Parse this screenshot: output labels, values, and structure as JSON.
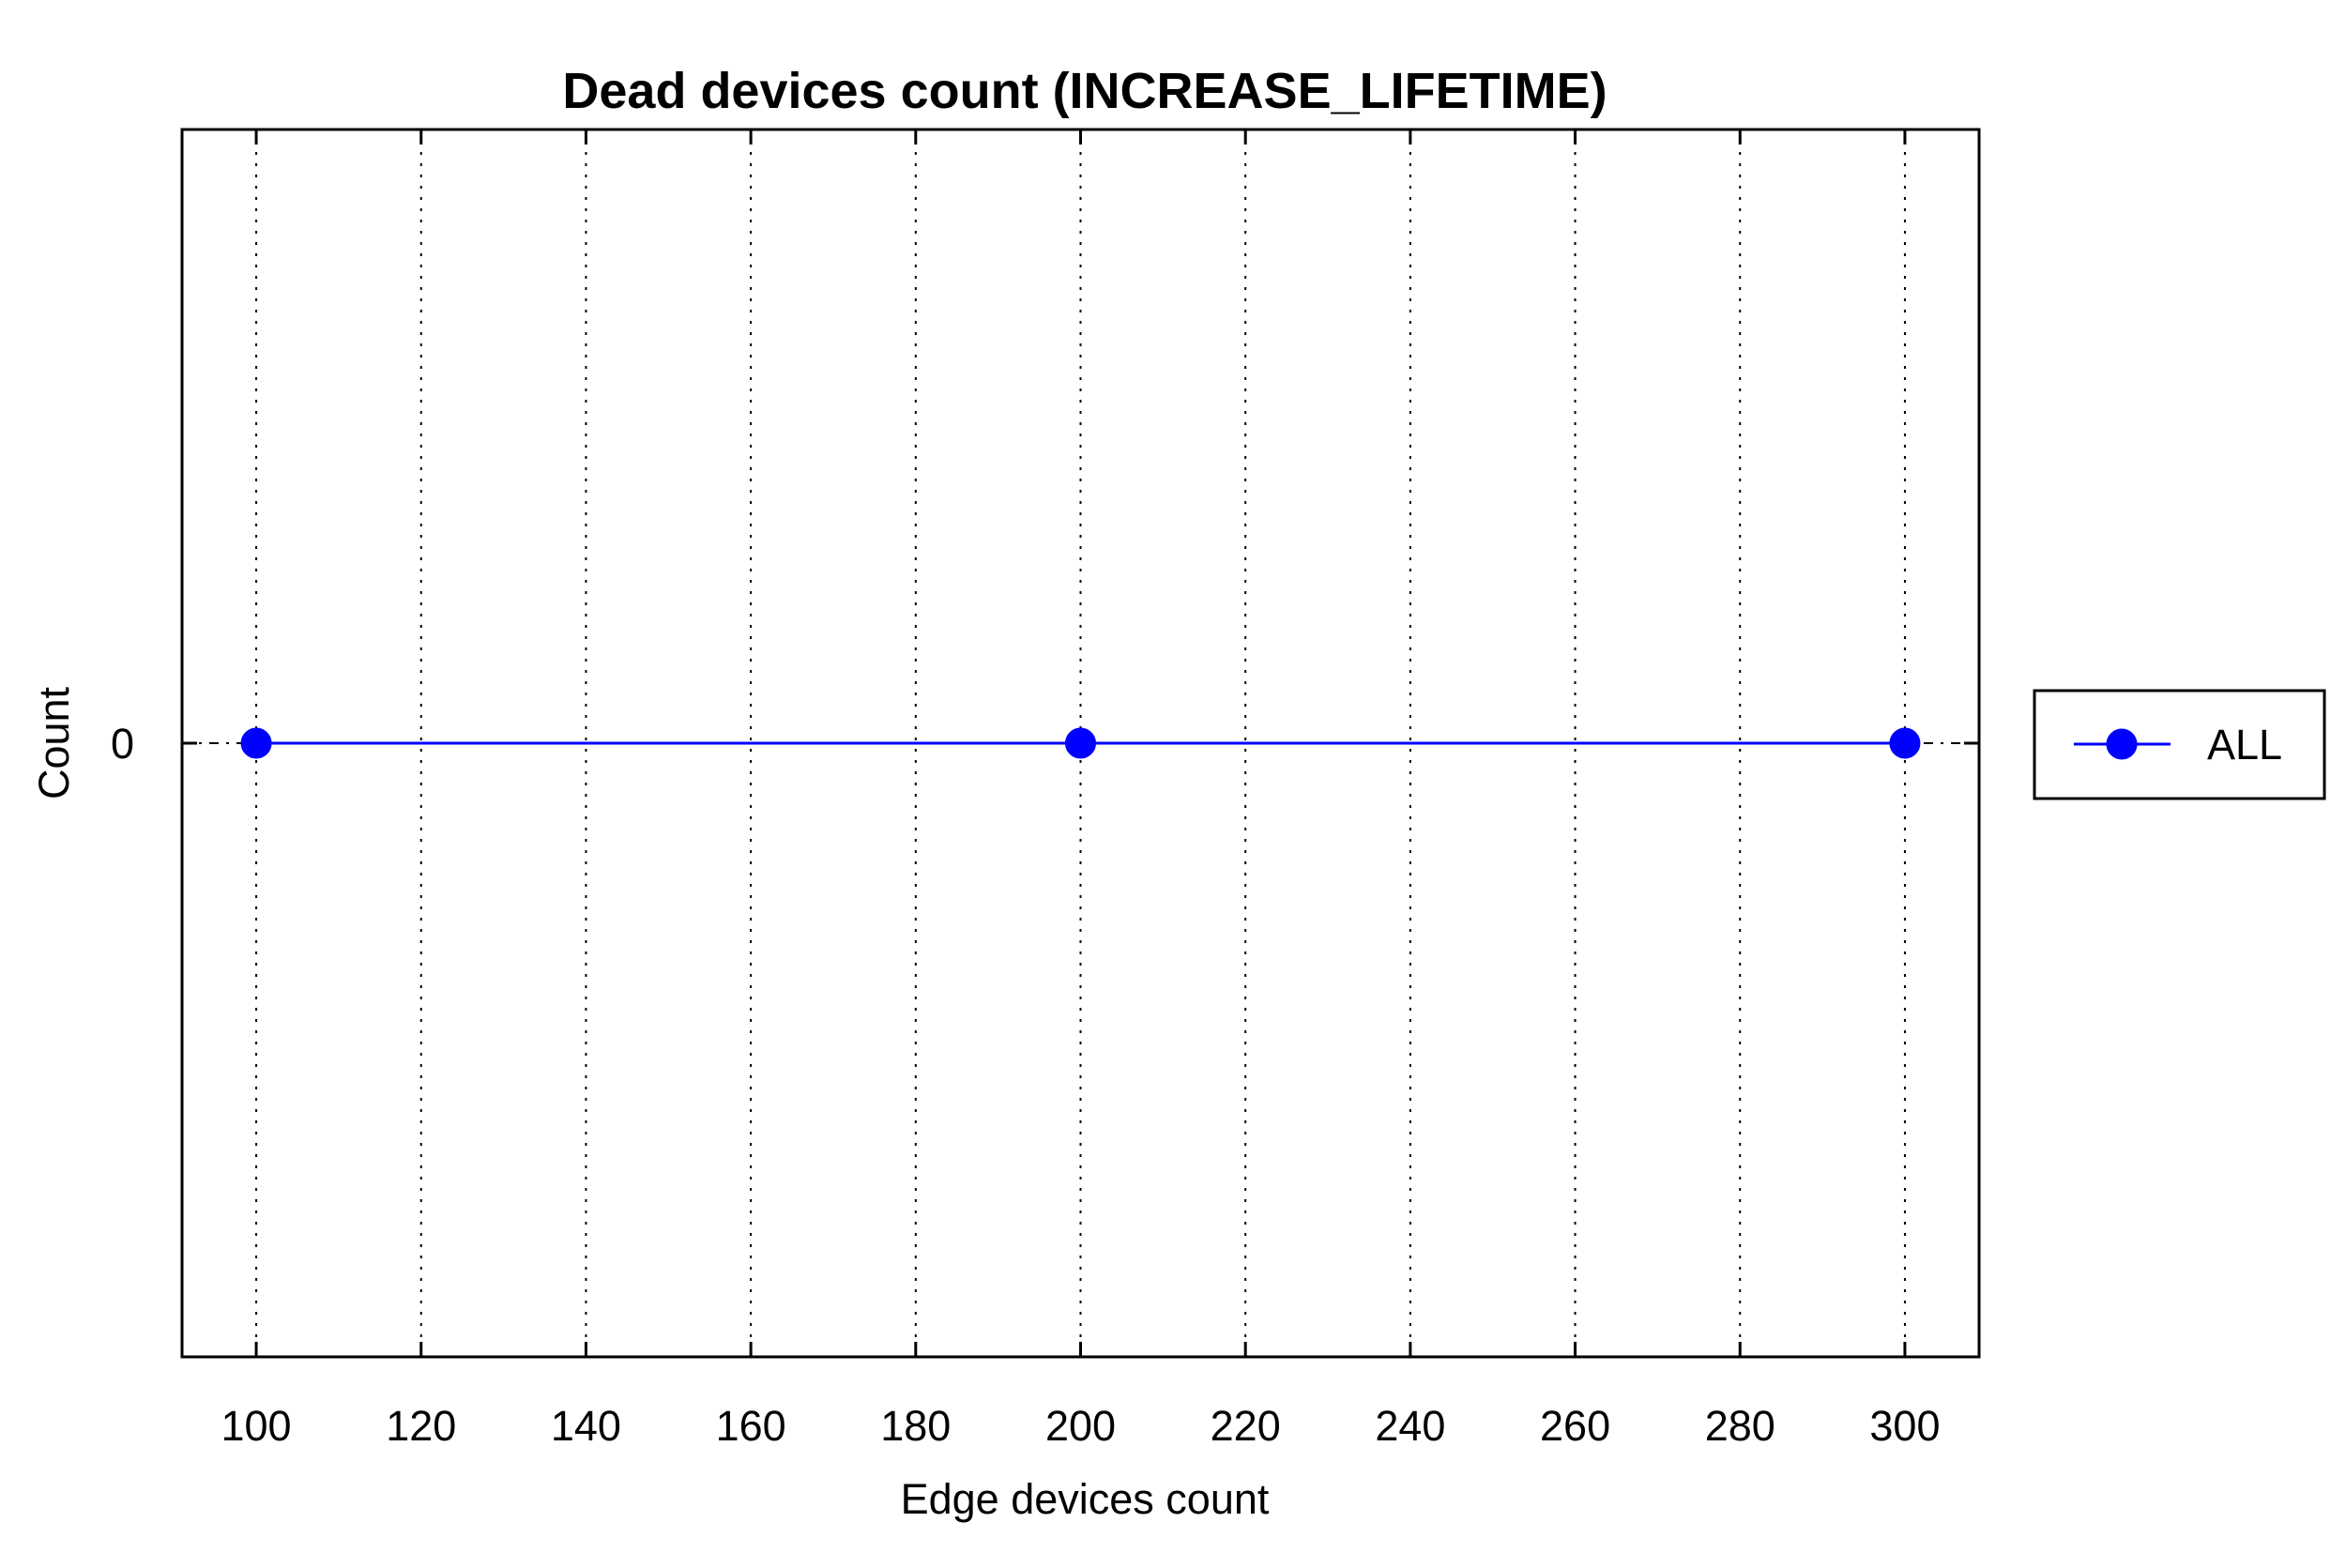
{
  "chart_data": {
    "type": "line",
    "title": "Dead devices count (INCREASE_LIFETIME)",
    "xlabel": "Edge devices count",
    "ylabel": "Count",
    "x": [
      100,
      200,
      300
    ],
    "series": [
      {
        "name": "ALL",
        "values": [
          0,
          0,
          0
        ],
        "color": "#0000ff",
        "marker": "circle"
      }
    ],
    "xlim": [
      91,
      309
    ],
    "ylim": [
      -1,
      1
    ],
    "xticks": [
      100,
      120,
      140,
      160,
      180,
      200,
      220,
      240,
      260,
      280,
      300
    ],
    "yticks": [
      0
    ],
    "grid": "vertical dotted",
    "legend_position": "outside right"
  }
}
